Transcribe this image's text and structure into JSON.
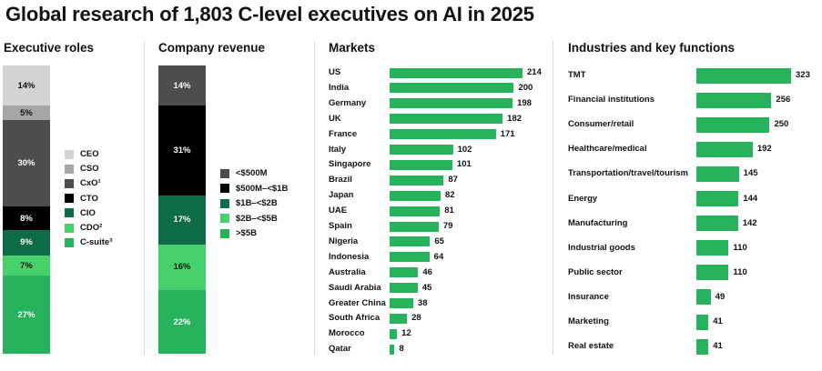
{
  "title": "Global research of 1,803 C-level executives on AI in 2025",
  "colors": {
    "light_gray": "#d3d3d3",
    "mid_gray": "#a6a6a6",
    "dark_gray": "#4d4d4d",
    "black": "#000000",
    "dark_green": "#0d6b47",
    "light_green": "#47d16a",
    "green": "#27b35c"
  },
  "chart_data": [
    {
      "type": "stacked-bar",
      "title": "Executive roles",
      "unit": "%",
      "segments": [
        {
          "name": "CEO",
          "value": 14,
          "label": "14%",
          "color": "#d3d3d3",
          "text_color": "#111111"
        },
        {
          "name": "CSO",
          "value": 5,
          "label": "5%",
          "color": "#a6a6a6",
          "text_color": "#111111"
        },
        {
          "name": "CxO¹",
          "value": 30,
          "label": "30%",
          "color": "#4d4d4d",
          "text_color": "#ffffff"
        },
        {
          "name": "CTO",
          "value": 8,
          "label": "8%",
          "color": "#000000",
          "text_color": "#ffffff"
        },
        {
          "name": "CIO",
          "value": 9,
          "label": "9%",
          "color": "#0d6b47",
          "text_color": "#ffffff"
        },
        {
          "name": "CDO²",
          "value": 7,
          "label": "7%",
          "color": "#47d16a",
          "text_color": "#111111"
        },
        {
          "name": "C-suite³",
          "value": 27,
          "label": "27%",
          "color": "#27b35c",
          "text_color": "#ffffff"
        }
      ]
    },
    {
      "type": "stacked-bar",
      "title": "Company revenue",
      "unit": "%",
      "segments": [
        {
          "name": "<$500M",
          "value": 14,
          "label": "14%",
          "color": "#4d4d4d",
          "text_color": "#ffffff"
        },
        {
          "name": "$500M–<$1B",
          "value": 31,
          "label": "31%",
          "color": "#000000",
          "text_color": "#ffffff"
        },
        {
          "name": "$1B–<$2B",
          "value": 17,
          "label": "17%",
          "color": "#0d6b47",
          "text_color": "#ffffff"
        },
        {
          "name": "$2B–<$5B",
          "value": 16,
          "label": "16%",
          "color": "#47d16a",
          "text_color": "#111111"
        },
        {
          "name": ">$5B",
          "value": 22,
          "label": "22%",
          "color": "#27b35c",
          "text_color": "#ffffff"
        }
      ]
    },
    {
      "type": "bar",
      "orientation": "horizontal",
      "title": "Markets",
      "categories": [
        "US",
        "India",
        "Germany",
        "UK",
        "France",
        "Italy",
        "Singapore",
        "Brazil",
        "Japan",
        "UAE",
        "Spain",
        "Nigeria",
        "Indonesia",
        "Australia",
        "Saudi Arabia",
        "Greater China",
        "South Africa",
        "Morocco",
        "Qatar"
      ],
      "values": [
        214,
        200,
        198,
        182,
        171,
        102,
        101,
        87,
        82,
        81,
        79,
        65,
        64,
        46,
        45,
        38,
        28,
        12,
        8
      ],
      "max": 214,
      "color": "#27b35c"
    },
    {
      "type": "bar",
      "orientation": "horizontal",
      "title": "Industries and key functions",
      "categories": [
        "TMT",
        "Financial institutions",
        "Consumer/retail",
        "Healthcare/medical",
        "Transportation/travel/tourism",
        "Energy",
        "Manufacturing",
        "Industrial goods",
        "Public sector",
        "Insurance",
        "Marketing",
        "Real estate"
      ],
      "values": [
        323,
        256,
        250,
        192,
        145,
        144,
        142,
        110,
        110,
        49,
        41,
        41
      ],
      "max": 323,
      "color": "#27b35c"
    }
  ]
}
